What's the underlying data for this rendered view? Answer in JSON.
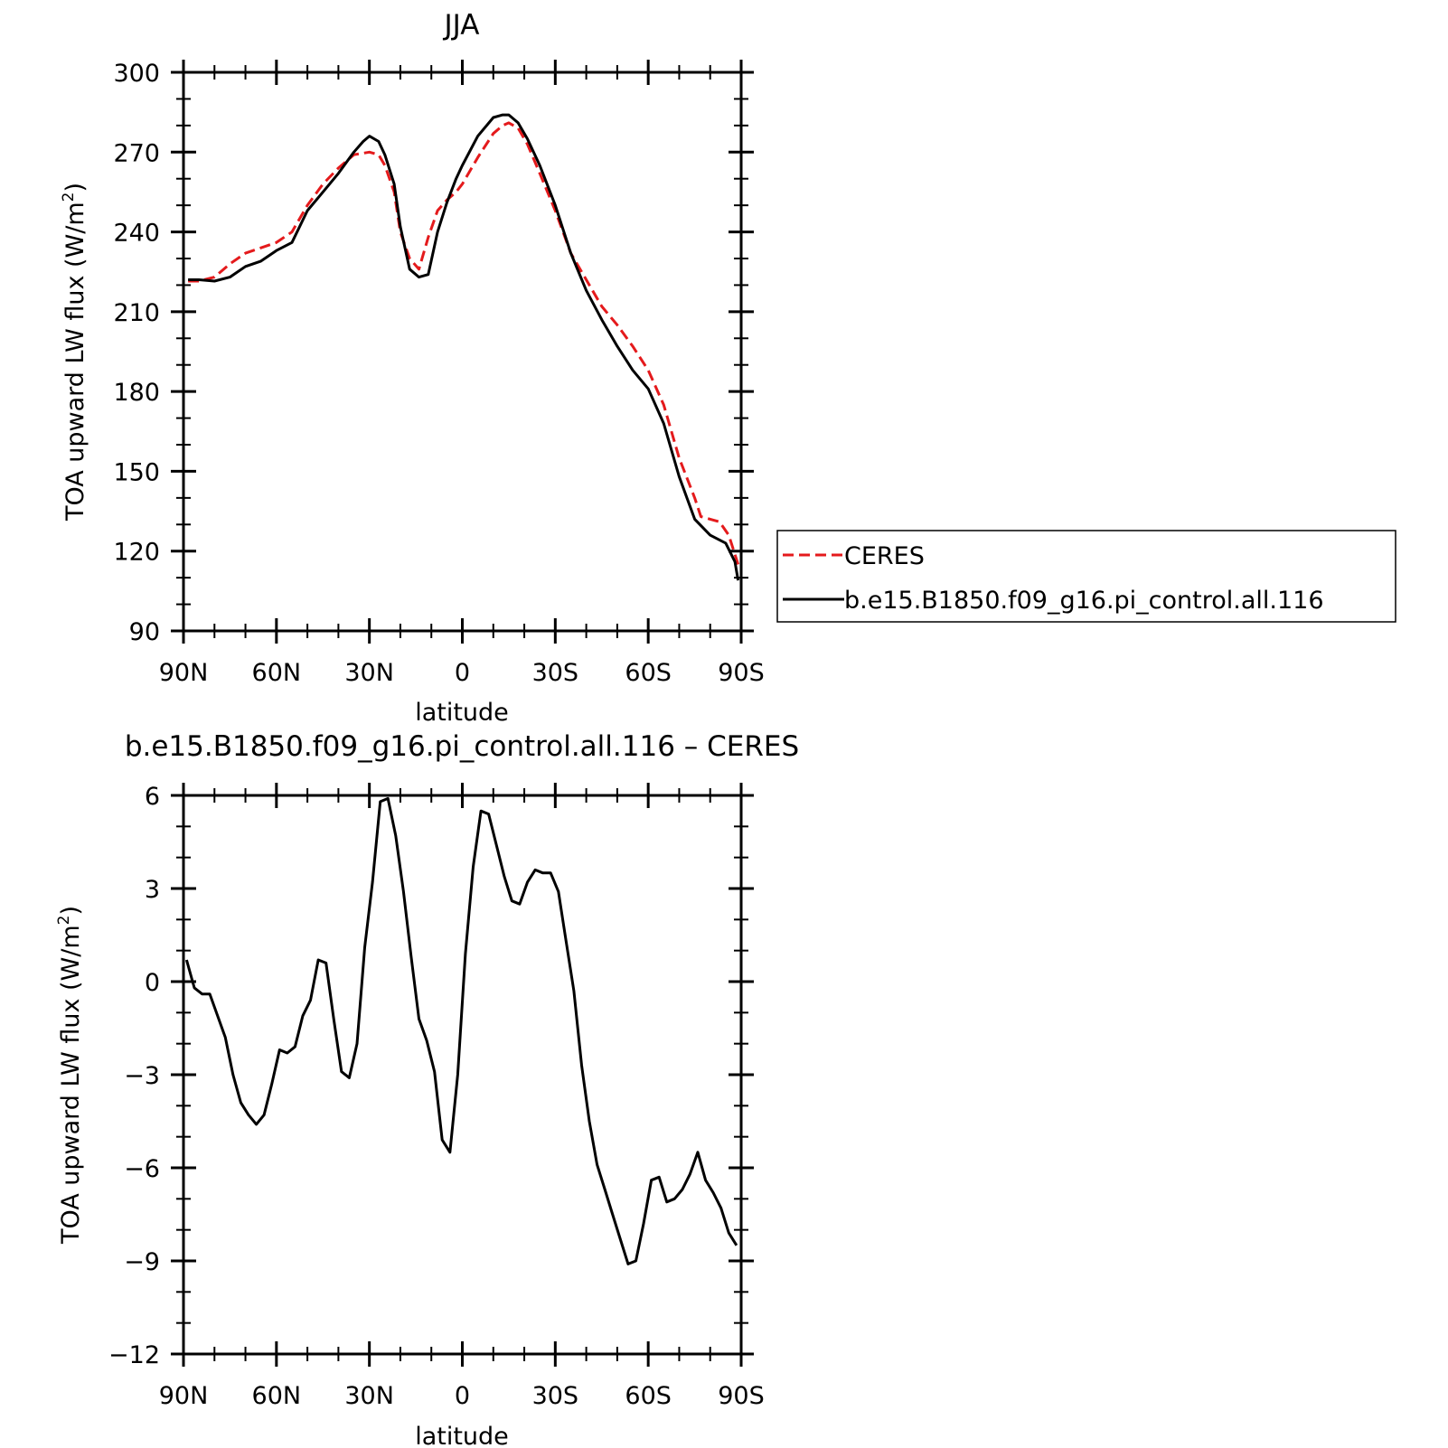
{
  "chart_data": [
    {
      "type": "line",
      "title": "JJA",
      "xlabel": "latitude",
      "ylabel": "TOA upward LW flux (W/m",
      "ylabel_sup": "2",
      "ylabel_close": ")",
      "xlim": [
        90,
        -90
      ],
      "ylim": [
        90,
        300
      ],
      "x_ticks": [
        90,
        60,
        30,
        0,
        -30,
        -60,
        -90
      ],
      "x_tick_labels": [
        "90N",
        "60N",
        "30N",
        "0",
        "30S",
        "60S",
        "90S"
      ],
      "y_ticks": [
        90,
        120,
        150,
        180,
        210,
        240,
        270,
        300
      ],
      "y_tick_labels": [
        "90",
        "120",
        "150",
        "180",
        "210",
        "240",
        "270",
        "300"
      ],
      "grid": false,
      "legend": "outside-right",
      "series": [
        {
          "name": "CERES",
          "color": "#e41a1c",
          "dash": "dashed",
          "x": [
            88.5,
            85,
            80,
            75,
            70,
            65,
            60,
            55,
            50,
            45,
            40,
            35,
            30,
            27,
            25,
            22,
            20,
            17,
            14,
            11,
            8,
            5,
            2,
            0,
            -5,
            -10,
            -13,
            -15,
            -18,
            -21,
            -25,
            -30,
            -35,
            -40,
            -45,
            -50,
            -55,
            -60,
            -65,
            -70,
            -75,
            -77,
            -80,
            -83,
            -86,
            -89
          ],
          "y": [
            221.5,
            221.5,
            223,
            228,
            232,
            234,
            236,
            240,
            250,
            258,
            264,
            269,
            270,
            269,
            265,
            255,
            240,
            230,
            226,
            238,
            248,
            252,
            255,
            258,
            268,
            277,
            280,
            281,
            279,
            273,
            262,
            248,
            232,
            222,
            212,
            205,
            197,
            188,
            175,
            155,
            140,
            133,
            132,
            131,
            126,
            115
          ]
        },
        {
          "name": "b.e15.B1850.f09_g16.pi_control.all.116",
          "color": "#000000",
          "dash": "solid",
          "x": [
            88.5,
            85,
            80,
            75,
            70,
            65,
            60,
            55,
            50,
            45,
            40,
            35,
            32,
            30,
            27,
            25,
            22,
            20,
            17,
            14,
            11,
            8,
            5,
            2,
            0,
            -5,
            -10,
            -13,
            -15,
            -18,
            -21,
            -25,
            -30,
            -35,
            -40,
            -45,
            -50,
            -55,
            -60,
            -65,
            -70,
            -75,
            -80,
            -85,
            -88,
            -89
          ],
          "y": [
            222,
            222,
            221.5,
            223,
            227,
            229,
            233,
            236,
            248,
            255,
            262,
            270,
            274,
            276,
            274,
            269,
            258,
            242,
            226,
            223,
            224,
            240,
            251,
            260,
            265,
            276,
            283,
            284,
            284,
            281,
            275,
            265,
            250,
            232,
            218,
            207,
            197,
            188,
            181,
            168,
            148,
            132,
            126,
            123,
            116,
            109
          ]
        }
      ]
    },
    {
      "type": "line",
      "title": "b.e15.B1850.f09_g16.pi_control.all.116 – CERES",
      "xlabel": "latitude",
      "ylabel": "TOA upward LW flux (W/m",
      "ylabel_sup": "2",
      "ylabel_close": ")",
      "xlim": [
        90,
        -90
      ],
      "ylim": [
        -12,
        6
      ],
      "x_ticks": [
        90,
        60,
        30,
        0,
        -30,
        -60,
        -90
      ],
      "x_tick_labels": [
        "90N",
        "60N",
        "30N",
        "0",
        "30S",
        "60S",
        "90S"
      ],
      "y_ticks": [
        -12,
        -9,
        -6,
        -3,
        0,
        3,
        6
      ],
      "y_tick_labels": [
        "−12",
        "−9",
        "−6",
        "−3",
        "0",
        "3",
        "6"
      ],
      "grid": false,
      "series": [
        {
          "color": "#000000",
          "dash": "solid",
          "x": [
            89,
            86.5,
            84,
            81.5,
            79,
            76.5,
            74,
            71.5,
            69,
            66.5,
            64,
            61.5,
            59,
            56.5,
            54,
            51.5,
            49,
            46.5,
            44,
            41.5,
            39,
            36.5,
            34,
            31.5,
            29,
            26.5,
            24,
            21.5,
            19,
            16.5,
            14,
            11.5,
            9,
            6.5,
            4,
            1.5,
            -1,
            -3.5,
            -6,
            -8.5,
            -11,
            -13.5,
            -16,
            -18.5,
            -21,
            -23.5,
            -26,
            -28.5,
            -31,
            -33.5,
            -36,
            -38.5,
            -41,
            -43.5,
            -46,
            -48.5,
            -51,
            -53.5,
            -56,
            -58.5,
            -61,
            -63.5,
            -66,
            -68.5,
            -71,
            -73.5,
            -76,
            -78.5,
            -81,
            -83.5,
            -86,
            -88.5
          ],
          "y": [
            0.7,
            -0.2,
            -0.4,
            -0.4,
            -1.1,
            -1.8,
            -3,
            -3.9,
            -4.3,
            -4.6,
            -4.3,
            -3.3,
            -2.2,
            -2.3,
            -2.1,
            -1.1,
            -0.6,
            0.7,
            0.6,
            -1.2,
            -2.9,
            -3.1,
            -2,
            1.1,
            3.2,
            5.8,
            5.9,
            4.7,
            2.9,
            0.8,
            -1.2,
            -1.9,
            -2.9,
            -5.1,
            -5.5,
            -3,
            0.9,
            3.7,
            5.5,
            5.4,
            4.4,
            3.4,
            2.6,
            2.5,
            3.2,
            3.6,
            3.5,
            3.5,
            2.9,
            1.3,
            -0.3,
            -2.7,
            -4.5,
            -5.9,
            -6.7,
            -7.5,
            -8.3,
            -9.1,
            -9,
            -7.8,
            -6.4,
            -6.3,
            -7.1,
            -7,
            -6.7,
            -6.2,
            -5.5,
            -6.4,
            -6.8,
            -7.3,
            -8.1,
            -8.5
          ]
        }
      ]
    }
  ]
}
